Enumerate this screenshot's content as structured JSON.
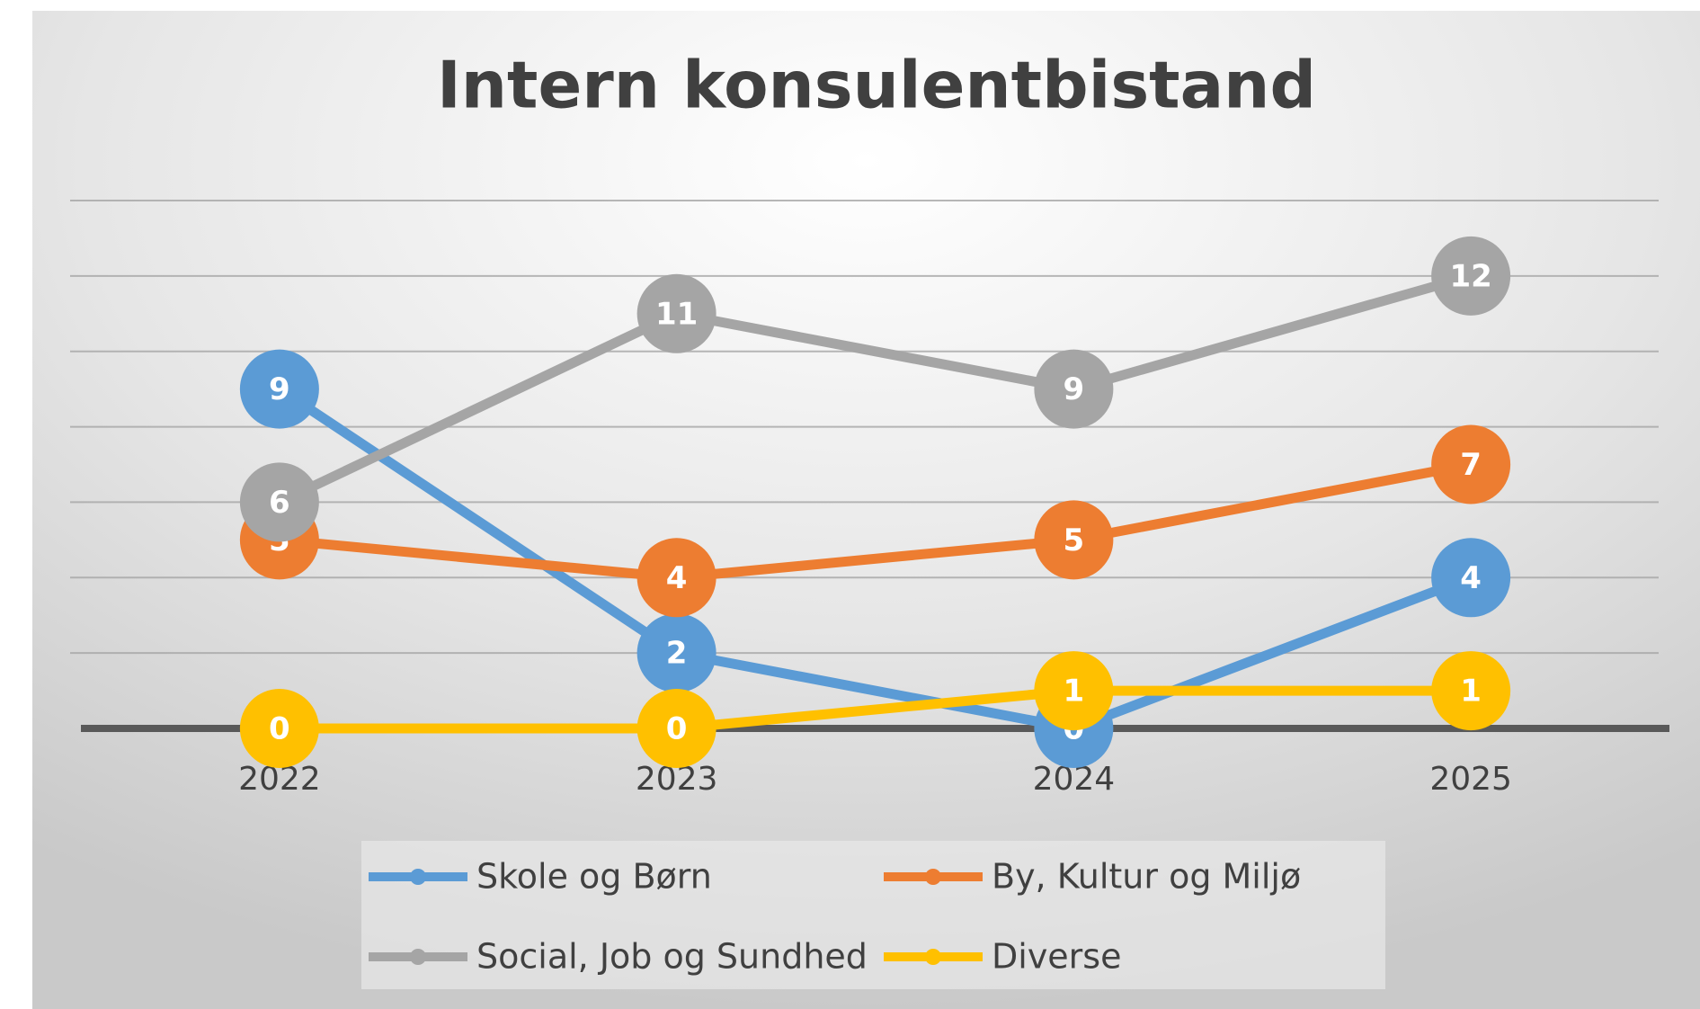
{
  "chart_data": {
    "type": "line",
    "title": "Intern konsulentbistand",
    "categories": [
      "2022",
      "2023",
      "2024",
      "2025"
    ],
    "series": [
      {
        "name": "Skole og Børn",
        "color": "#5b9bd5",
        "values": [
          9,
          2,
          0,
          4
        ]
      },
      {
        "name": "By, Kultur og Miljø",
        "color": "#ed7d31",
        "values": [
          5,
          4,
          5,
          7
        ]
      },
      {
        "name": "Social, Job og Sundhed",
        "color": "#a5a5a5",
        "values": [
          6,
          11,
          9,
          12
        ]
      },
      {
        "name": "Diverse",
        "color": "#ffc000",
        "values": [
          0,
          0,
          1,
          1
        ]
      }
    ],
    "ylim": [
      0,
      14
    ],
    "yticks": [
      0,
      2,
      4,
      6,
      8,
      10,
      12,
      14
    ],
    "grid": true,
    "legend": "bottom"
  }
}
